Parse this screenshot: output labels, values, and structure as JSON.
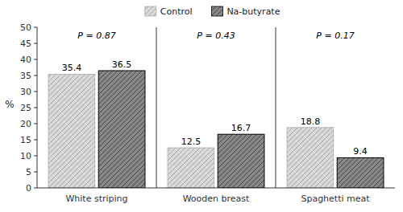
{
  "chart_data": {
    "type": "bar",
    "categories": [
      "White striping",
      "Wooden breast",
      "Spaghetti meat"
    ],
    "series": [
      {
        "name": "Control",
        "color": "#d9d9d9",
        "values": [
          35.4,
          12.5,
          18.8
        ]
      },
      {
        "name": "Na-butyrate",
        "color": "#888888",
        "values": [
          36.5,
          16.7,
          9.4
        ]
      }
    ],
    "annotations": [
      "P = 0.87",
      "P = 0.43",
      "P = 0.17"
    ],
    "ylabel": "%",
    "ylim": [
      0,
      50
    ],
    "yticks": [
      0,
      5,
      10,
      15,
      20,
      25,
      30,
      35,
      40,
      45,
      50
    ],
    "data_labels": true,
    "legend": "top"
  }
}
